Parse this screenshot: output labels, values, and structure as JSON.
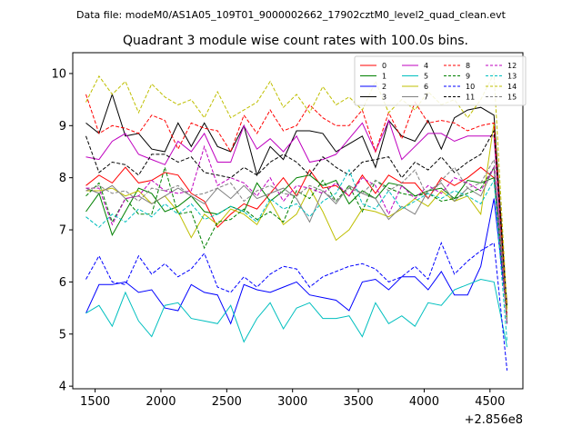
{
  "figure": {
    "suptitle": "Data file: modeM0/AS1A05_109T01_9000002662_17902cztM0_level2_quad_clean.evt",
    "x_offset_label": "+2.856e8"
  },
  "colors": {
    "axes": "#000000",
    "background": "#ffffff",
    "legend_edge": "#cccccc"
  },
  "chart_data": {
    "type": "line",
    "title": "Quadrant 3 module wise count rates with 100.0s bins.",
    "xlabel": "",
    "ylabel": "",
    "xlim": [
      1330,
      4750
    ],
    "ylim": [
      3.95,
      10.4
    ],
    "x_ticks": [
      1500,
      2000,
      2500,
      3000,
      3500,
      4000,
      4500
    ],
    "x_tick_labels": [
      "1500",
      "2000",
      "2500",
      "3000",
      "3500",
      "4000",
      "4500"
    ],
    "y_ticks": [
      4,
      5,
      6,
      7,
      8,
      9,
      10
    ],
    "y_tick_labels": [
      "4",
      "5",
      "6",
      "7",
      "8",
      "9",
      "10"
    ],
    "legend_position": "top-right",
    "legend_columns": 4,
    "x": [
      1430,
      1530,
      1630,
      1730,
      1830,
      1930,
      2030,
      2130,
      2230,
      2330,
      2430,
      2530,
      2630,
      2730,
      2830,
      2930,
      3030,
      3130,
      3230,
      3330,
      3430,
      3530,
      3630,
      3730,
      3830,
      3930,
      4030,
      4130,
      4230,
      4330,
      4430,
      4530,
      4630
    ],
    "series": [
      {
        "name": "0",
        "color": "#ff0000",
        "dash": "solid",
        "values": [
          7.85,
          8.05,
          7.9,
          8.2,
          7.9,
          7.95,
          8.1,
          8.05,
          7.7,
          7.55,
          7.05,
          7.3,
          7.5,
          7.4,
          7.7,
          8.0,
          7.65,
          8.15,
          7.8,
          7.85,
          7.65,
          8.05,
          7.7,
          8.05,
          7.9,
          7.9,
          7.6,
          8.0,
          7.85,
          8.0,
          8.2,
          8.0,
          5.6
        ]
      },
      {
        "name": "1",
        "color": "#008000",
        "dash": "solid",
        "values": [
          7.35,
          7.7,
          6.9,
          7.35,
          7.8,
          7.7,
          7.35,
          7.45,
          7.65,
          7.35,
          7.3,
          7.45,
          7.35,
          7.9,
          7.55,
          7.75,
          8.0,
          8.05,
          7.85,
          7.95,
          7.5,
          7.75,
          7.6,
          7.9,
          7.85,
          7.65,
          7.75,
          7.8,
          7.6,
          7.95,
          7.9,
          8.0,
          5.3
        ]
      },
      {
        "name": "2",
        "color": "#0000ff",
        "dash": "solid",
        "values": [
          5.4,
          5.95,
          5.95,
          6.0,
          5.8,
          5.85,
          5.5,
          5.45,
          5.95,
          5.8,
          5.75,
          5.2,
          5.95,
          5.85,
          5.8,
          5.9,
          6.0,
          5.75,
          5.7,
          5.65,
          5.45,
          6.0,
          6.05,
          5.85,
          6.1,
          6.1,
          5.85,
          6.2,
          5.75,
          5.75,
          6.3,
          7.6,
          5.35
        ]
      },
      {
        "name": "3",
        "color": "#000000",
        "dash": "solid",
        "values": [
          9.05,
          8.85,
          9.6,
          8.8,
          8.85,
          8.55,
          8.5,
          9.05,
          8.6,
          9.05,
          8.6,
          8.5,
          9.0,
          8.05,
          8.6,
          8.35,
          8.9,
          8.9,
          8.85,
          8.5,
          8.65,
          8.8,
          8.2,
          9.1,
          8.8,
          8.7,
          9.1,
          8.55,
          9.15,
          9.3,
          9.35,
          9.2,
          5.5
        ]
      },
      {
        "name": "4",
        "color": "#bf00bf",
        "dash": "solid",
        "values": [
          8.4,
          8.35,
          8.7,
          8.85,
          8.45,
          8.35,
          8.25,
          8.7,
          8.5,
          8.85,
          8.3,
          8.3,
          9.0,
          8.55,
          8.75,
          8.5,
          8.8,
          8.3,
          8.35,
          8.45,
          8.75,
          9.05,
          8.5,
          9.1,
          8.35,
          8.6,
          8.85,
          8.85,
          8.7,
          8.8,
          8.8,
          8.8,
          5.2
        ]
      },
      {
        "name": "5",
        "color": "#00bfbf",
        "dash": "solid",
        "values": [
          5.4,
          5.55,
          5.15,
          5.8,
          5.25,
          4.95,
          5.55,
          5.6,
          5.3,
          5.25,
          5.2,
          5.55,
          4.85,
          5.3,
          5.6,
          5.1,
          5.5,
          5.6,
          5.3,
          5.3,
          5.35,
          4.95,
          5.6,
          5.2,
          5.35,
          5.15,
          5.6,
          5.55,
          5.85,
          5.95,
          6.05,
          6.0,
          4.75
        ]
      },
      {
        "name": "6",
        "color": "#bfbf00",
        "dash": "solid",
        "values": [
          7.75,
          7.75,
          7.8,
          7.65,
          7.75,
          7.5,
          7.65,
          7.35,
          6.85,
          7.3,
          7.1,
          7.4,
          7.3,
          7.1,
          7.55,
          7.1,
          7.3,
          7.8,
          7.35,
          6.8,
          7.0,
          7.4,
          7.35,
          7.25,
          7.4,
          7.6,
          7.45,
          7.75,
          7.55,
          7.65,
          7.3,
          9.05,
          5.3
        ]
      },
      {
        "name": "7",
        "color": "#808080",
        "dash": "solid",
        "values": [
          7.8,
          7.7,
          7.85,
          7.6,
          7.65,
          7.5,
          7.65,
          7.8,
          7.65,
          7.5,
          7.8,
          7.6,
          7.85,
          7.6,
          7.7,
          7.8,
          7.6,
          7.15,
          7.75,
          7.5,
          7.85,
          7.7,
          7.6,
          7.2,
          7.45,
          7.3,
          7.75,
          7.9,
          7.55,
          7.8,
          7.65,
          8.2,
          5.5
        ]
      },
      {
        "name": "8",
        "color": "#ff0000",
        "dash": "dashed",
        "values": [
          9.6,
          8.85,
          9.0,
          8.95,
          8.85,
          9.2,
          9.1,
          8.55,
          9.05,
          8.95,
          8.9,
          8.5,
          9.2,
          8.85,
          9.3,
          8.9,
          9.0,
          9.4,
          9.15,
          9.0,
          9.0,
          9.3,
          8.5,
          9.25,
          8.75,
          9.45,
          9.05,
          9.1,
          9.05,
          8.9,
          9.0,
          9.05,
          5.4
        ]
      },
      {
        "name": "9",
        "color": "#008000",
        "dash": "dashed",
        "values": [
          7.65,
          7.9,
          7.15,
          7.6,
          7.3,
          7.3,
          8.2,
          7.3,
          7.35,
          6.65,
          7.15,
          7.2,
          7.4,
          7.2,
          7.35,
          7.15,
          7.75,
          7.6,
          7.95,
          7.55,
          7.85,
          7.35,
          7.95,
          7.8,
          7.7,
          7.65,
          7.7,
          7.55,
          7.6,
          7.7,
          7.8,
          8.2,
          5.2
        ]
      },
      {
        "name": "10",
        "color": "#0000ff",
        "dash": "dashed",
        "values": [
          6.05,
          6.5,
          6.0,
          5.95,
          6.5,
          6.15,
          6.35,
          6.1,
          6.25,
          6.55,
          5.9,
          5.8,
          6.1,
          5.9,
          6.15,
          6.3,
          6.25,
          5.9,
          6.1,
          6.2,
          6.3,
          6.35,
          6.25,
          6.0,
          6.1,
          6.3,
          6.05,
          6.75,
          6.15,
          6.4,
          6.6,
          6.75,
          4.3
        ]
      },
      {
        "name": "11",
        "color": "#000000",
        "dash": "dashed",
        "values": [
          8.8,
          8.1,
          8.3,
          8.25,
          8.05,
          8.45,
          8.45,
          8.3,
          8.4,
          8.1,
          8.05,
          8.0,
          8.2,
          8.05,
          8.3,
          8.45,
          8.3,
          8.05,
          8.4,
          8.2,
          8.05,
          8.3,
          8.35,
          8.4,
          8.0,
          8.3,
          8.15,
          8.4,
          8.1,
          8.3,
          8.45,
          8.9,
          5.5
        ]
      },
      {
        "name": "12",
        "color": "#bf00bf",
        "dash": "dashed",
        "values": [
          7.8,
          7.8,
          7.1,
          7.6,
          7.65,
          7.95,
          7.75,
          7.7,
          7.75,
          8.6,
          7.85,
          8.0,
          7.9,
          7.65,
          8.0,
          7.55,
          7.85,
          7.8,
          7.7,
          7.9,
          7.65,
          8.0,
          7.85,
          7.3,
          7.85,
          7.6,
          7.85,
          7.7,
          8.0,
          7.9,
          7.75,
          8.2,
          5.2
        ]
      },
      {
        "name": "13",
        "color": "#00bfbf",
        "dash": "dashed",
        "values": [
          7.25,
          7.05,
          7.3,
          7.15,
          7.4,
          7.25,
          7.5,
          7.3,
          7.5,
          7.2,
          7.3,
          7.45,
          7.35,
          7.15,
          7.6,
          7.4,
          7.5,
          7.25,
          7.55,
          7.7,
          8.15,
          7.5,
          7.4,
          7.75,
          7.4,
          7.55,
          7.7,
          7.6,
          7.75,
          7.65,
          7.5,
          7.95,
          4.85
        ]
      },
      {
        "name": "14",
        "color": "#bfbf00",
        "dash": "dashed",
        "values": [
          9.45,
          9.95,
          9.6,
          9.85,
          9.25,
          9.8,
          9.55,
          9.4,
          9.5,
          9.15,
          9.65,
          9.15,
          9.3,
          9.45,
          9.85,
          9.35,
          9.6,
          9.25,
          9.75,
          9.4,
          9.55,
          9.3,
          9.85,
          9.25,
          9.5,
          9.3,
          9.65,
          9.4,
          9.5,
          9.15,
          9.5,
          10.0,
          5.45
        ]
      },
      {
        "name": "15",
        "color": "#808080",
        "dash": "dashed",
        "values": [
          7.75,
          7.85,
          7.7,
          7.75,
          7.55,
          7.8,
          7.75,
          7.85,
          7.65,
          7.7,
          7.8,
          7.9,
          7.55,
          7.75,
          7.85,
          7.7,
          7.65,
          7.85,
          7.75,
          7.55,
          7.8,
          7.7,
          7.95,
          7.75,
          7.9,
          8.15,
          7.6,
          7.95,
          8.2,
          7.8,
          7.9,
          8.35,
          5.25
        ]
      }
    ]
  }
}
